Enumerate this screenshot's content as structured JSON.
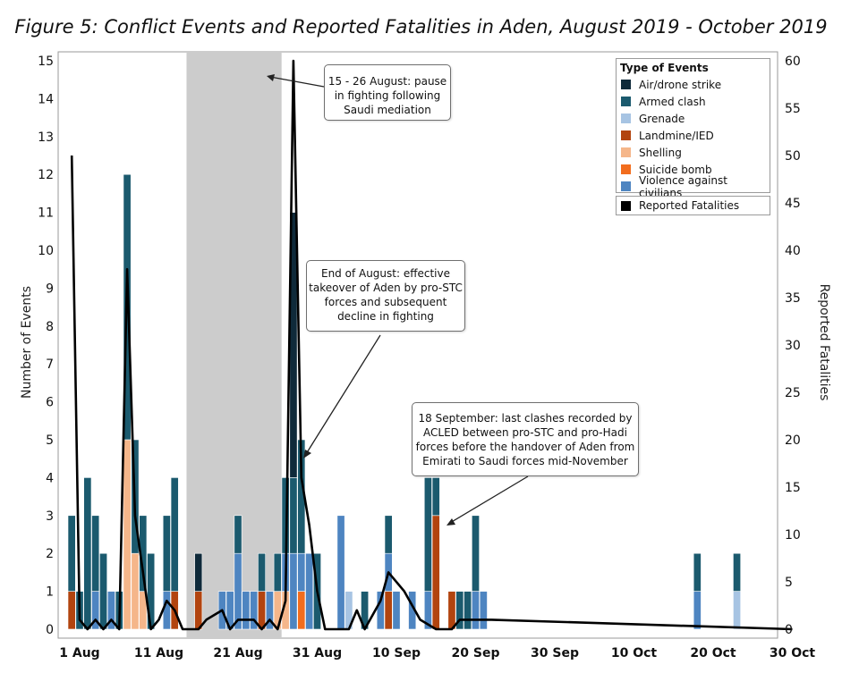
{
  "title": "Figure 5: Conflict Events and Reported Fatalities in Aden, August 2019 - October 2019",
  "chart_data": {
    "type": "bar",
    "x_label_ticks": [
      "1 Aug",
      "11 Aug",
      "21 Aug",
      "31 Aug",
      "10 Sep",
      "20 Sep",
      "30 Sep",
      "10 Oct",
      "20 Oct",
      "30 Oct"
    ],
    "ylabel": "Number of Events",
    "y2label": "Reported Fatalities",
    "ylim": [
      0,
      15
    ],
    "y2lim": [
      0,
      60
    ],
    "y_ticks": [
      0,
      1,
      2,
      3,
      4,
      5,
      6,
      7,
      8,
      9,
      10,
      11,
      12,
      13,
      14,
      15
    ],
    "y2_ticks": [
      0,
      5,
      10,
      15,
      20,
      25,
      30,
      35,
      40,
      45,
      50,
      55,
      60
    ],
    "legend_title": "Type of Events",
    "legend_position": "top-right",
    "series": [
      {
        "name": "Air/drone strike",
        "color": "#0f2a3a"
      },
      {
        "name": "Armed clash",
        "color": "#1b5a6e"
      },
      {
        "name": "Grenade",
        "color": "#a7c4e3"
      },
      {
        "name": "Landmine/IED",
        "color": "#b2440f"
      },
      {
        "name": "Shelling",
        "color": "#f5b68a"
      },
      {
        "name": "Suicide bomb",
        "color": "#f26d1e"
      },
      {
        "name": "Violence against civilians",
        "color": "#4e85c1"
      }
    ],
    "fatalities_series": {
      "name": "Reported Fatalities",
      "color": "#000000"
    },
    "shaded_period": [
      "2019-08-15",
      "2019-08-26"
    ],
    "daily_events": [
      {
        "date": "2019-07-31",
        "counts": {
          "Landmine/IED": 1,
          "Armed clash": 2
        }
      },
      {
        "date": "2019-08-01",
        "counts": {
          "Armed clash": 1
        }
      },
      {
        "date": "2019-08-02",
        "counts": {
          "Armed clash": 4
        }
      },
      {
        "date": "2019-08-03",
        "counts": {
          "Violence against civilians": 1,
          "Armed clash": 2
        }
      },
      {
        "date": "2019-08-04",
        "counts": {
          "Armed clash": 2
        }
      },
      {
        "date": "2019-08-05",
        "counts": {
          "Violence against civilians": 1
        }
      },
      {
        "date": "2019-08-06",
        "counts": {
          "Armed clash": 1
        }
      },
      {
        "date": "2019-08-07",
        "counts": {
          "Shelling": 5,
          "Armed clash": 7
        }
      },
      {
        "date": "2019-08-08",
        "counts": {
          "Shelling": 2,
          "Armed clash": 3
        }
      },
      {
        "date": "2019-08-09",
        "counts": {
          "Shelling": 1,
          "Armed clash": 2
        }
      },
      {
        "date": "2019-08-10",
        "counts": {
          "Armed clash": 2
        }
      },
      {
        "date": "2019-08-12",
        "counts": {
          "Violence against civilians": 1,
          "Armed clash": 2
        }
      },
      {
        "date": "2019-08-13",
        "counts": {
          "Landmine/IED": 1,
          "Armed clash": 3
        }
      },
      {
        "date": "2019-08-16",
        "counts": {
          "Landmine/IED": 1,
          "Air/drone strike": 1
        }
      },
      {
        "date": "2019-08-19",
        "counts": {
          "Violence against civilians": 1
        }
      },
      {
        "date": "2019-08-20",
        "counts": {
          "Violence against civilians": 1
        }
      },
      {
        "date": "2019-08-21",
        "counts": {
          "Violence against civilians": 2,
          "Armed clash": 1
        }
      },
      {
        "date": "2019-08-22",
        "counts": {
          "Violence against civilians": 1
        }
      },
      {
        "date": "2019-08-23",
        "counts": {
          "Violence against civilians": 1
        }
      },
      {
        "date": "2019-08-24",
        "counts": {
          "Landmine/IED": 1,
          "Armed clash": 1
        }
      },
      {
        "date": "2019-08-25",
        "counts": {
          "Violence against civilians": 1
        }
      },
      {
        "date": "2019-08-26",
        "counts": {
          "Shelling": 1,
          "Armed clash": 1
        }
      },
      {
        "date": "2019-08-27",
        "counts": {
          "Shelling": 1,
          "Violence against civilians": 1,
          "Armed clash": 2
        }
      },
      {
        "date": "2019-08-28",
        "counts": {
          "Violence against civilians": 2,
          "Armed clash": 2,
          "Air/drone strike": 7
        }
      },
      {
        "date": "2019-08-29",
        "counts": {
          "Suicide bomb": 1,
          "Violence against civilians": 1,
          "Armed clash": 3
        }
      },
      {
        "date": "2019-08-30",
        "counts": {
          "Violence against civilians": 2
        }
      },
      {
        "date": "2019-08-31",
        "counts": {
          "Armed clash": 2
        }
      },
      {
        "date": "2019-09-03",
        "counts": {
          "Violence against civilians": 3
        }
      },
      {
        "date": "2019-09-04",
        "counts": {
          "Grenade": 1
        }
      },
      {
        "date": "2019-09-06",
        "counts": {
          "Armed clash": 1
        }
      },
      {
        "date": "2019-09-08",
        "counts": {
          "Violence against civilians": 1
        }
      },
      {
        "date": "2019-09-09",
        "counts": {
          "Violence against civilians": 1,
          "Landmine/IED": 1,
          "Armed clash": 1
        }
      },
      {
        "date": "2019-09-10",
        "counts": {
          "Violence against civilians": 1
        }
      },
      {
        "date": "2019-09-12",
        "counts": {
          "Violence against civilians": 1
        }
      },
      {
        "date": "2019-09-14",
        "counts": {
          "Violence against civilians": 1,
          "Armed clash": 3
        }
      },
      {
        "date": "2019-09-15",
        "counts": {
          "Landmine/IED": 3,
          "Armed clash": 1
        }
      },
      {
        "date": "2019-09-17",
        "counts": {
          "Landmine/IED": 1
        }
      },
      {
        "date": "2019-09-18",
        "counts": {
          "Armed clash": 1
        }
      },
      {
        "date": "2019-09-19",
        "counts": {
          "Armed clash": 1
        }
      },
      {
        "date": "2019-09-20",
        "counts": {
          "Violence against civilians": 1,
          "Armed clash": 2
        }
      },
      {
        "date": "2019-09-21",
        "counts": {
          "Violence against civilians": 1
        }
      },
      {
        "date": "2019-10-18",
        "counts": {
          "Violence against civilians": 1,
          "Armed clash": 1
        }
      },
      {
        "date": "2019-10-23",
        "counts": {
          "Grenade": 1,
          "Armed clash": 1
        }
      }
    ],
    "fatalities": [
      {
        "date": "2019-07-31",
        "value": 50
      },
      {
        "date": "2019-08-01",
        "value": 1
      },
      {
        "date": "2019-08-02",
        "value": 0
      },
      {
        "date": "2019-08-03",
        "value": 1
      },
      {
        "date": "2019-08-04",
        "value": 0
      },
      {
        "date": "2019-08-05",
        "value": 1
      },
      {
        "date": "2019-08-06",
        "value": 0
      },
      {
        "date": "2019-08-07",
        "value": 38
      },
      {
        "date": "2019-08-08",
        "value": 12
      },
      {
        "date": "2019-08-09",
        "value": 6
      },
      {
        "date": "2019-08-10",
        "value": 0
      },
      {
        "date": "2019-08-11",
        "value": 1
      },
      {
        "date": "2019-08-12",
        "value": 3
      },
      {
        "date": "2019-08-13",
        "value": 2
      },
      {
        "date": "2019-08-14",
        "value": 0
      },
      {
        "date": "2019-08-16",
        "value": 0
      },
      {
        "date": "2019-08-17",
        "value": 1
      },
      {
        "date": "2019-08-19",
        "value": 2
      },
      {
        "date": "2019-08-20",
        "value": 0
      },
      {
        "date": "2019-08-21",
        "value": 1
      },
      {
        "date": "2019-08-23",
        "value": 1
      },
      {
        "date": "2019-08-24",
        "value": 0
      },
      {
        "date": "2019-08-25",
        "value": 1
      },
      {
        "date": "2019-08-26",
        "value": 0
      },
      {
        "date": "2019-08-27",
        "value": 3
      },
      {
        "date": "2019-08-28",
        "value": 60
      },
      {
        "date": "2019-08-29",
        "value": 16
      },
      {
        "date": "2019-08-30",
        "value": 11
      },
      {
        "date": "2019-08-31",
        "value": 4
      },
      {
        "date": "2019-09-01",
        "value": 0
      },
      {
        "date": "2019-09-03",
        "value": 0
      },
      {
        "date": "2019-09-04",
        "value": 0
      },
      {
        "date": "2019-09-05",
        "value": 2
      },
      {
        "date": "2019-09-06",
        "value": 0
      },
      {
        "date": "2019-09-08",
        "value": 3
      },
      {
        "date": "2019-09-09",
        "value": 6
      },
      {
        "date": "2019-09-11",
        "value": 4
      },
      {
        "date": "2019-09-13",
        "value": 1
      },
      {
        "date": "2019-09-15",
        "value": 0
      },
      {
        "date": "2019-09-17",
        "value": 0
      },
      {
        "date": "2019-09-18",
        "value": 1
      },
      {
        "date": "2019-09-22",
        "value": 1
      },
      {
        "date": "2019-10-30",
        "value": 0
      }
    ],
    "annotations": [
      {
        "text": "15 - 26 August: pause in fighting following Saudi mediation"
      },
      {
        "text": "End of August: effective takeover of Aden by pro-STC forces and subsequent decline in fighting"
      },
      {
        "text": "18 September: last clashes recorded by ACLED between pro-STC and pro-Hadi forces before the handover of Aden from Emirati to Saudi forces mid-November"
      }
    ]
  }
}
